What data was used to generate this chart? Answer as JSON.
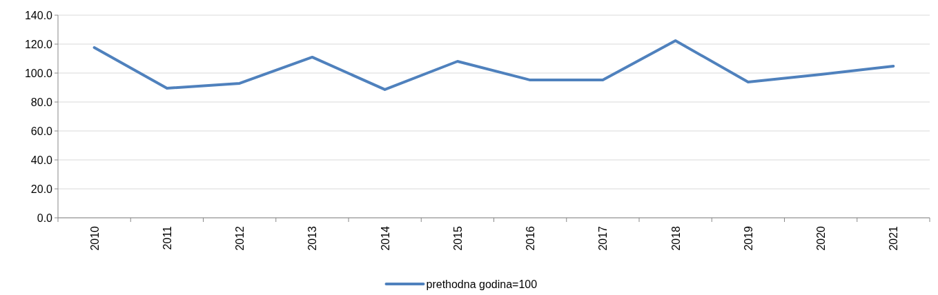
{
  "chart_data": {
    "type": "line",
    "categories": [
      "2010",
      "2011",
      "2012",
      "2013",
      "2014",
      "2015",
      "2016",
      "2017",
      "2018",
      "2019",
      "2020",
      "2021"
    ],
    "series": [
      {
        "name": "prethodna godina=100",
        "color": "#4f81bd",
        "values": [
          117.6,
          89.5,
          92.9,
          111.0,
          88.6,
          108.1,
          95.2,
          95.2,
          122.4,
          93.8,
          99.0,
          104.8
        ]
      }
    ],
    "ylim": [
      0,
      140
    ],
    "yticks": [
      {
        "value": 0,
        "label": "0.0"
      },
      {
        "value": 20,
        "label": "20.0"
      },
      {
        "value": 40,
        "label": "40.0"
      },
      {
        "value": 60,
        "label": "60.0"
      },
      {
        "value": 80,
        "label": "80.0"
      },
      {
        "value": 100,
        "label": "100.0"
      },
      {
        "value": 120,
        "label": "120.0"
      },
      {
        "value": 140,
        "label": "140.0"
      }
    ],
    "grid": "y",
    "legend": "bottom",
    "marker": "none",
    "line_style": "solid"
  }
}
